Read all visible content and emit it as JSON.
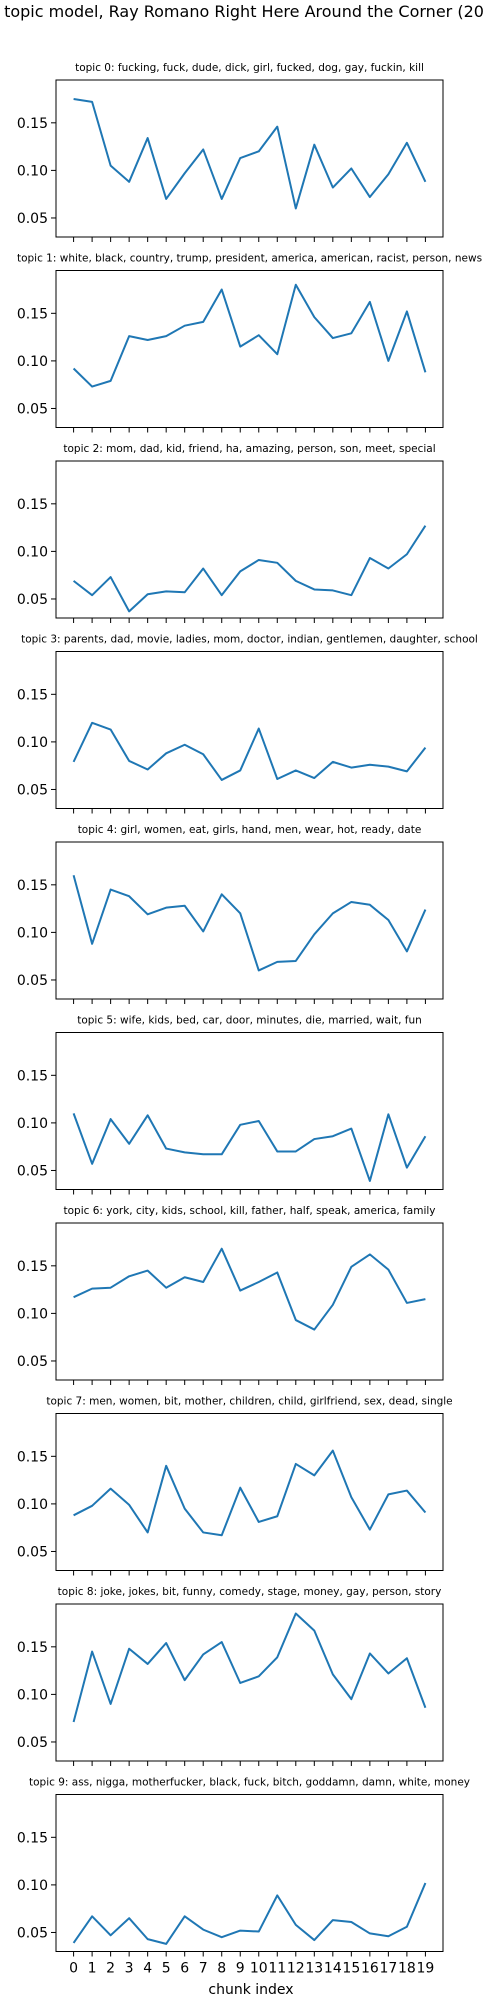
{
  "chart_data": {
    "type": "line",
    "title": "topic model, Ray Romano Right Here Around the Corner (20",
    "xlabel": "chunk index",
    "line_color": "#1f77b4",
    "grid": false,
    "x": [
      0,
      1,
      2,
      3,
      4,
      5,
      6,
      7,
      8,
      9,
      10,
      11,
      12,
      13,
      14,
      15,
      16,
      17,
      18,
      19
    ],
    "x_tick_labels": [
      "0",
      "1",
      "2",
      "3",
      "4",
      "5",
      "6",
      "7",
      "8",
      "9",
      "10",
      "11",
      "12",
      "13",
      "14",
      "15",
      "16",
      "17",
      "18",
      "19"
    ],
    "y_tick_labels": [
      "0.05",
      "0.10",
      "0.15"
    ],
    "y_ticks": [
      0.05,
      0.1,
      0.15
    ],
    "ylim": [
      0.03,
      0.195
    ],
    "xlim": [
      -0.95,
      19.95
    ],
    "subplots": [
      {
        "title": "topic 0: fucking, fuck, dude, dick, girl, fucked, dog, gay, fuckin, kill",
        "values": [
          0.175,
          0.172,
          0.105,
          0.088,
          0.134,
          0.07,
          0.097,
          0.122,
          0.07,
          0.113,
          0.12,
          0.146,
          0.06,
          0.127,
          0.082,
          0.102,
          0.072,
          0.096,
          0.129,
          0.088
        ]
      },
      {
        "title": "topic 1: white, black, country, trump, president, america, american, racist, person, news",
        "values": [
          0.092,
          0.073,
          0.079,
          0.126,
          0.122,
          0.126,
          0.137,
          0.141,
          0.175,
          0.115,
          0.127,
          0.107,
          0.18,
          0.146,
          0.124,
          0.129,
          0.162,
          0.1,
          0.152,
          0.088
        ]
      },
      {
        "title": "topic 2: mom, dad, kid, friend, ha, amazing, person, son, meet, special",
        "values": [
          0.069,
          0.054,
          0.073,
          0.037,
          0.055,
          0.058,
          0.057,
          0.082,
          0.054,
          0.079,
          0.091,
          0.088,
          0.069,
          0.06,
          0.059,
          0.054,
          0.093,
          0.082,
          0.097,
          0.127
        ]
      },
      {
        "title": "topic 3: parents, dad, movie, ladies, mom, doctor, indian, gentlemen, daughter, school",
        "values": [
          0.079,
          0.12,
          0.113,
          0.08,
          0.071,
          0.088,
          0.097,
          0.087,
          0.06,
          0.07,
          0.114,
          0.061,
          0.07,
          0.062,
          0.079,
          0.073,
          0.076,
          0.074,
          0.069,
          0.094
        ]
      },
      {
        "title": "topic 4: girl, women, eat, girls, hand, men, wear, hot, ready, date",
        "values": [
          0.16,
          0.088,
          0.145,
          0.138,
          0.119,
          0.126,
          0.128,
          0.101,
          0.14,
          0.12,
          0.06,
          0.069,
          0.07,
          0.098,
          0.12,
          0.132,
          0.129,
          0.113,
          0.08,
          0.124
        ]
      },
      {
        "title": "topic 5: wife, kids, bed, car, door, minutes, die, married, wait, fun",
        "values": [
          0.11,
          0.057,
          0.104,
          0.078,
          0.108,
          0.073,
          0.069,
          0.067,
          0.067,
          0.098,
          0.102,
          0.07,
          0.07,
          0.083,
          0.086,
          0.094,
          0.039,
          0.109,
          0.053,
          0.086
        ]
      },
      {
        "title": "topic 6: york, city, kids, school, kill, father, half, speak, america, family",
        "values": [
          0.117,
          0.126,
          0.127,
          0.139,
          0.145,
          0.127,
          0.138,
          0.133,
          0.168,
          0.124,
          0.133,
          0.143,
          0.093,
          0.083,
          0.109,
          0.149,
          0.162,
          0.146,
          0.111,
          0.115
        ]
      },
      {
        "title": "topic 7: men, women, bit, mother, children, child, girlfriend, sex, dead, single",
        "values": [
          0.088,
          0.098,
          0.116,
          0.099,
          0.07,
          0.14,
          0.095,
          0.07,
          0.067,
          0.117,
          0.081,
          0.087,
          0.142,
          0.13,
          0.156,
          0.107,
          0.073,
          0.11,
          0.114,
          0.091
        ]
      },
      {
        "title": "topic 8: joke, jokes, bit, funny, comedy, stage, money, gay, person, story",
        "values": [
          0.071,
          0.145,
          0.09,
          0.148,
          0.132,
          0.154,
          0.115,
          0.142,
          0.155,
          0.112,
          0.119,
          0.139,
          0.185,
          0.167,
          0.121,
          0.095,
          0.143,
          0.122,
          0.138,
          0.086
        ]
      },
      {
        "title": "topic 9: ass, nigga, motherfucker, black, fuck, bitch, goddamn, damn, white, money",
        "values": [
          0.039,
          0.067,
          0.047,
          0.065,
          0.043,
          0.038,
          0.067,
          0.053,
          0.045,
          0.052,
          0.051,
          0.089,
          0.058,
          0.042,
          0.063,
          0.061,
          0.049,
          0.046,
          0.056,
          0.102
        ]
      }
    ]
  }
}
